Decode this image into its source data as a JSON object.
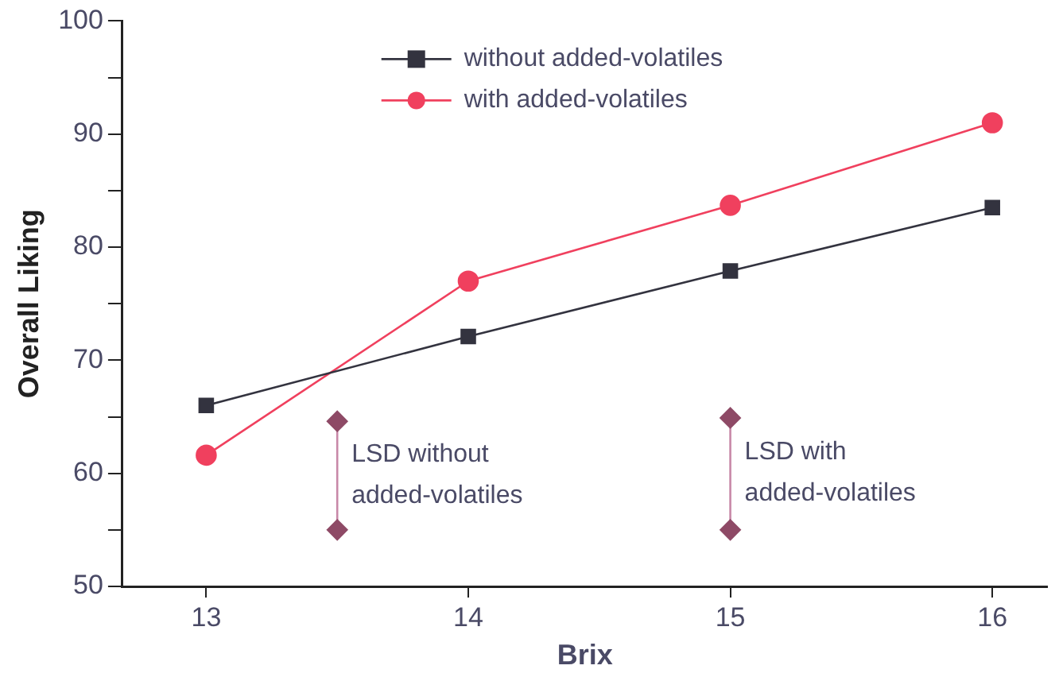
{
  "chart_data": {
    "type": "line",
    "xlabel": "Brix",
    "ylabel": "Overall Liking",
    "xlim": [
      12.68,
      16.21
    ],
    "xticks": [
      13,
      14,
      15,
      16
    ],
    "ylim": [
      50,
      100
    ],
    "yticks": [
      50,
      {
        "value": 55,
        "label": null
      },
      60,
      {
        "value": 65,
        "label": null
      },
      70,
      {
        "value": 75,
        "label": null
      },
      80,
      {
        "value": 85,
        "label": null
      },
      90,
      {
        "value": 95,
        "label": null
      },
      100
    ],
    "grid": false,
    "legend": "top",
    "line_style": "solid",
    "series": [
      {
        "name": "without added-volatiles",
        "color": "#33333f",
        "marker": "square",
        "x": [
          13,
          14,
          15,
          16
        ],
        "values": [
          66.0,
          72.1,
          77.9,
          83.5
        ]
      },
      {
        "name": "with added-volatiles",
        "color": "#f0405e",
        "marker": "circle",
        "x": [
          13,
          14,
          15,
          16
        ],
        "values": [
          61.6,
          77.0,
          83.7,
          91.0
        ]
      },
      {
        "color": "#8e4a66",
        "marker": "diamond",
        "x": [
          13.5,
          13.5
        ],
        "values": [
          64.6,
          55.0
        ]
      },
      {
        "color": "#8e4a66",
        "marker": "diamond",
        "x": [
          15,
          15
        ],
        "values": [
          64.9,
          55.0
        ]
      }
    ],
    "annotations": [
      {
        "text": "LSD without\nadded-volatiles",
        "x": 13.5,
        "y": 59.8
      },
      {
        "text": "LSD with\nadded-volatiles",
        "x": 15,
        "y": 60.0
      }
    ]
  }
}
